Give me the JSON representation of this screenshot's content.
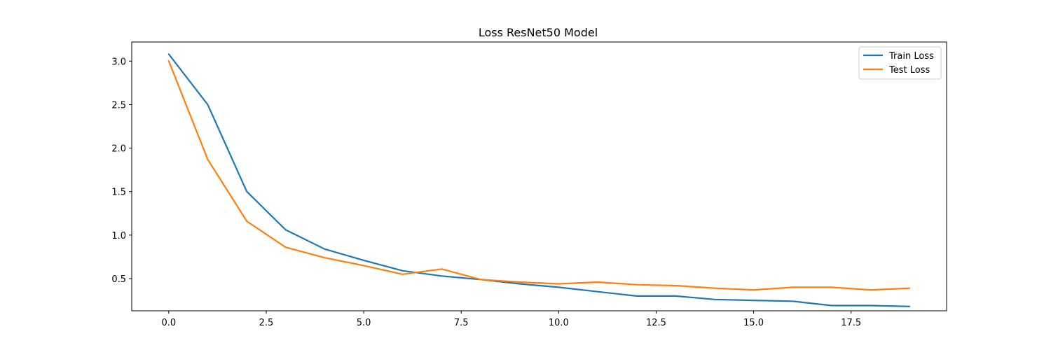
{
  "chart_data": {
    "type": "line",
    "title": "Loss ResNet50 Model",
    "xlabel": "",
    "ylabel": "",
    "xlim": [
      -0.95,
      19.95
    ],
    "ylim": [
      0.13,
      3.22
    ],
    "xticks": [
      0.0,
      2.5,
      5.0,
      7.5,
      10.0,
      12.5,
      15.0,
      17.5
    ],
    "xtick_labels": [
      "0.0",
      "2.5",
      "5.0",
      "7.5",
      "10.0",
      "12.5",
      "15.0",
      "17.5"
    ],
    "yticks": [
      0.5,
      1.0,
      1.5,
      2.0,
      2.5,
      3.0
    ],
    "ytick_labels": [
      "0.5",
      "1.0",
      "1.5",
      "2.0",
      "2.5",
      "3.0"
    ],
    "grid": false,
    "legend_position": "top-right",
    "x": [
      0,
      1,
      2,
      3,
      4,
      5,
      6,
      7,
      8,
      9,
      10,
      11,
      12,
      13,
      14,
      15,
      16,
      17,
      18,
      19
    ],
    "series": [
      {
        "name": "Train Loss",
        "color": "#1f77b4",
        "values": [
          3.08,
          2.5,
          1.5,
          1.06,
          0.84,
          0.71,
          0.59,
          0.53,
          0.49,
          0.44,
          0.4,
          0.35,
          0.3,
          0.3,
          0.26,
          0.25,
          0.24,
          0.19,
          0.19,
          0.18
        ]
      },
      {
        "name": "Test Loss",
        "color": "#ff7f0e",
        "values": [
          3.0,
          1.87,
          1.16,
          0.86,
          0.74,
          0.65,
          0.55,
          0.61,
          0.49,
          0.46,
          0.44,
          0.46,
          0.43,
          0.42,
          0.39,
          0.37,
          0.4,
          0.4,
          0.37,
          0.39
        ]
      }
    ]
  }
}
